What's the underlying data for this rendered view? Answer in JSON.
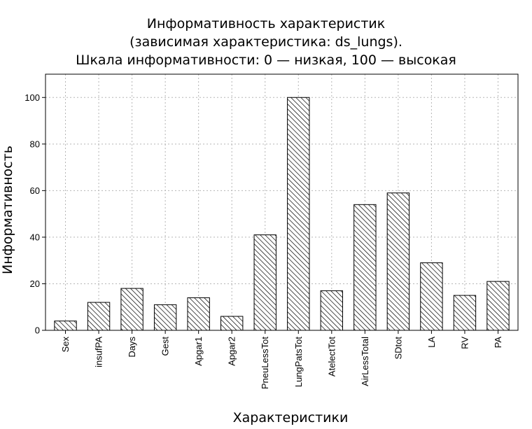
{
  "chart_data": {
    "type": "bar",
    "title_lines": [
      "Информативность характеристик",
      "(зависимая характеристика: ds_lungs).",
      "Шкала информативности: 0 — низкая, 100 — высокая"
    ],
    "xlabel": "Характеристики",
    "ylabel": "Информативность",
    "categories": [
      "Sex",
      "insufPA",
      "Days",
      "Gest",
      "Apgar1",
      "Apgar2",
      "PneuLessTot",
      "LungPatsTot",
      "AtelectTot",
      "AirLessTotal",
      "SDtot",
      "LA",
      "RV",
      "PA"
    ],
    "values": [
      4,
      12,
      18,
      11,
      14,
      6,
      41,
      100,
      17,
      54,
      59,
      29,
      15,
      21
    ],
    "ylim": [
      0,
      110
    ],
    "yticks": [
      0,
      20,
      40,
      60,
      80,
      100
    ],
    "grid": true,
    "legend": "none",
    "bar_fill": "diagonal-hatch",
    "bar_color": "#000000",
    "background": "#ffffff"
  }
}
